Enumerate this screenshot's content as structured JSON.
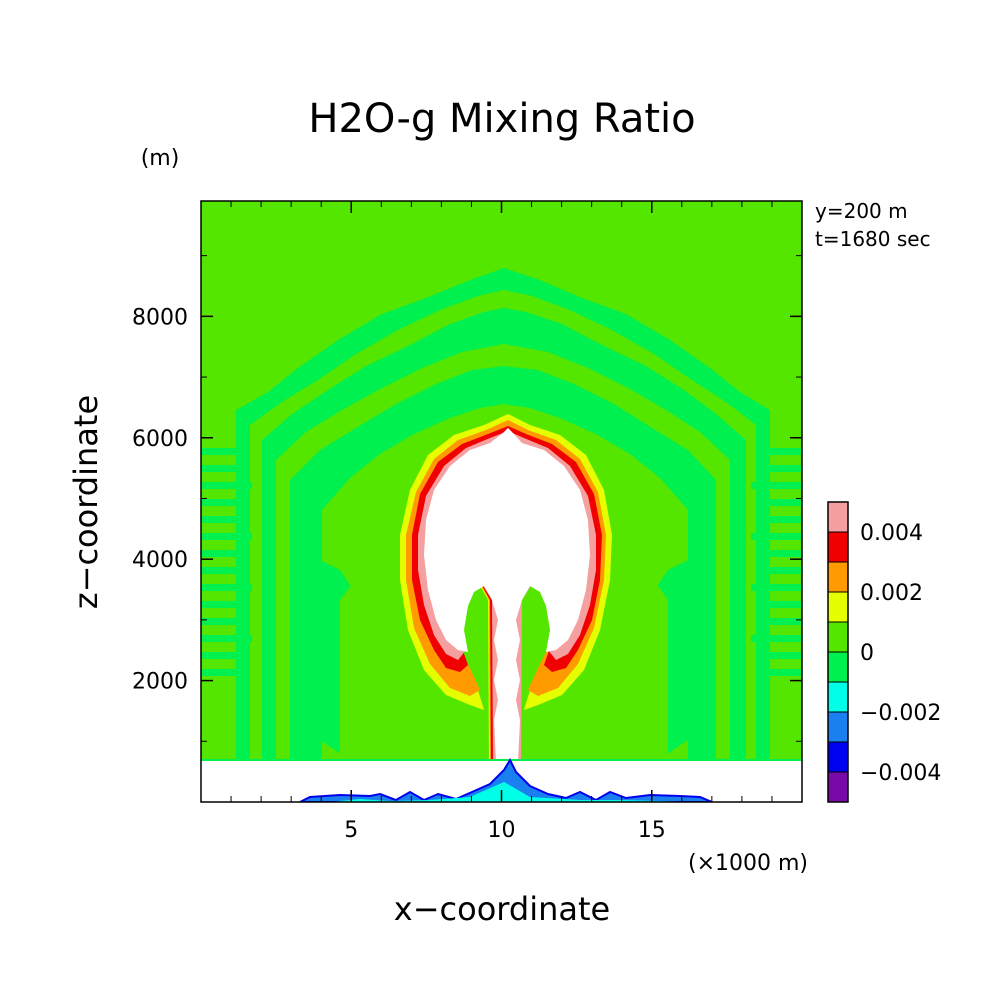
{
  "chart_data": {
    "type": "heatmap",
    "title": "H2O-g Mixing Ratio",
    "xlabel": "x−coordinate",
    "ylabel": "z−coordinate",
    "x_unit": "(×1000 m)",
    "y_unit": "(m)",
    "annotations": [
      "y=200 m",
      "t=1680 sec"
    ],
    "xlim": [
      0,
      20
    ],
    "ylim": [
      0,
      9900
    ],
    "x_ticks": [
      5,
      10,
      15
    ],
    "x_tick_labels": [
      "5",
      "10",
      "15"
    ],
    "y_ticks": [
      2000,
      4000,
      6000,
      8000
    ],
    "y_tick_labels": [
      "2000",
      "4000",
      "6000",
      "8000"
    ],
    "colorbar": {
      "levels": [
        -0.005,
        -0.004,
        -0.003,
        -0.002,
        -0.001,
        0,
        0.001,
        0.002,
        0.003,
        0.004,
        0.005
      ],
      "colors": [
        "#7a0aa8",
        "#0000f0",
        "#1a80f0",
        "#00ffe6",
        "#00f050",
        "#55e600",
        "#e6ff00",
        "#ff9a00",
        "#f00000",
        "#f5a0a0"
      ],
      "tick_values": [
        -0.004,
        -0.002,
        0,
        0.002,
        0.004
      ],
      "tick_labels": [
        "−0.004",
        "−0.002",
        "0",
        "0.002",
        "0.004"
      ]
    },
    "background_level": "0 to 0.001",
    "blank_region_z_below": 700
  }
}
